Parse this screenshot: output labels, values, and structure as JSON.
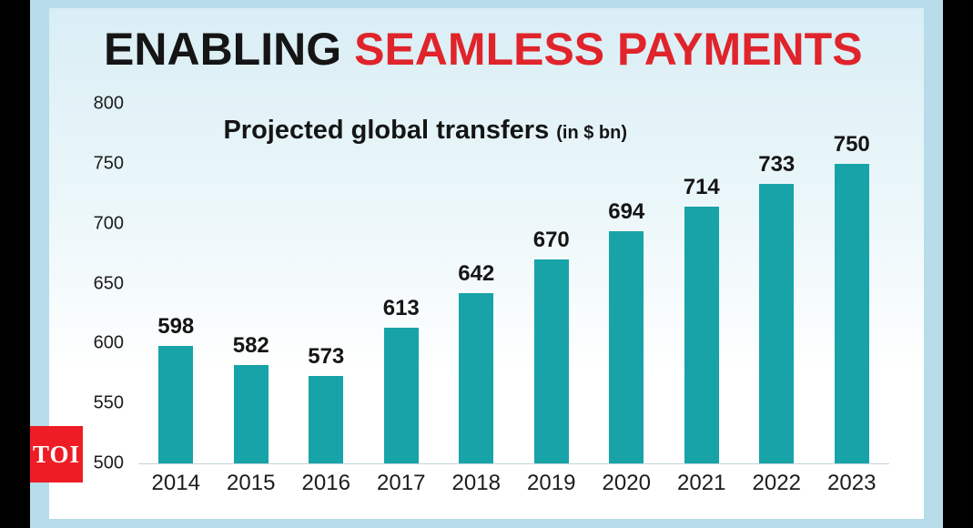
{
  "title": {
    "black": "ENABLING",
    "red": "SEAMLESS PAYMENTS"
  },
  "subtitle": {
    "main": "Projected global transfers",
    "unit": "(in $ bn)"
  },
  "watermark": {
    "label": "TOI"
  },
  "colors": {
    "bar": "#17a3a8",
    "title_red": "#e0242b",
    "logo_red": "#ee1c24",
    "frame_blue": "#b7dcea"
  },
  "chart_data": {
    "type": "bar",
    "title": "ENABLING SEAMLESS PAYMENTS",
    "subtitle": "Projected global transfers (in $ bn)",
    "categories": [
      "2014",
      "2015",
      "2016",
      "2017",
      "2018",
      "2019",
      "2020",
      "2021",
      "2022",
      "2023"
    ],
    "values": [
      598,
      582,
      573,
      613,
      642,
      670,
      694,
      714,
      733,
      750
    ],
    "xlabel": "",
    "ylabel": "",
    "ylim": [
      500,
      800
    ],
    "yticks": [
      500,
      550,
      600,
      650,
      700,
      750,
      800
    ],
    "grid": false,
    "legend": false,
    "value_labels": true,
    "bar_color": "#17a3a8"
  }
}
